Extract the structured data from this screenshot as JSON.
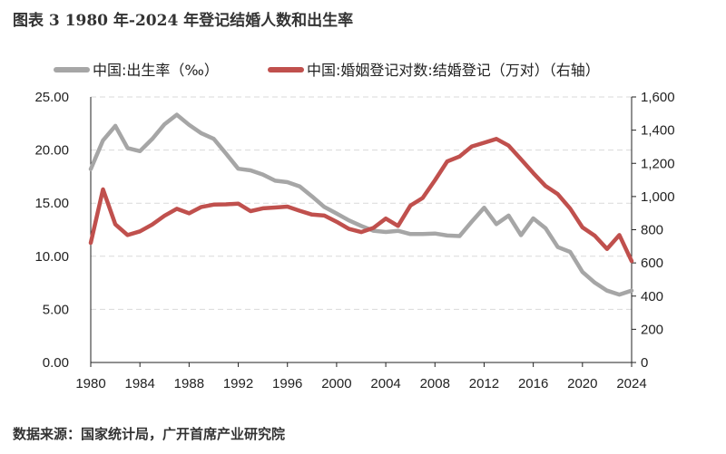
{
  "title": "图表 3 1980 年-2024 年登记结婚人数和出生率",
  "source": "数据来源：国家统计局，广开首席产业研究院",
  "chart_data": {
    "type": "line",
    "title": "图表 3 1980 年-2024 年登记结婚人数和出生率",
    "x": [
      1980,
      1981,
      1982,
      1983,
      1984,
      1985,
      1986,
      1987,
      1988,
      1989,
      1990,
      1991,
      1992,
      1993,
      1994,
      1995,
      1996,
      1997,
      1998,
      1999,
      2000,
      2001,
      2002,
      2003,
      2004,
      2005,
      2006,
      2007,
      2008,
      2009,
      2010,
      2011,
      2012,
      2013,
      2014,
      2015,
      2016,
      2017,
      2018,
      2019,
      2020,
      2021,
      2022,
      2023,
      2024
    ],
    "x_ticks": [
      "1980",
      "1984",
      "1988",
      "1992",
      "1996",
      "2000",
      "2004",
      "2008",
      "2012",
      "2016",
      "2020",
      "2024"
    ],
    "y_left": {
      "lim": [
        0,
        25
      ],
      "ticks": [
        "0.00",
        "5.00",
        "10.00",
        "15.00",
        "20.00",
        "25.00"
      ]
    },
    "y_right": {
      "lim": [
        0,
        1600
      ],
      "ticks": [
        "0",
        "200",
        "400",
        "600",
        "800",
        "1,000",
        "1,200",
        "1,400",
        "1,600"
      ]
    },
    "grid": "horizontal dashed",
    "legend": "top",
    "series": [
      {
        "name": "中国:出生率（‰）",
        "axis": "left",
        "color": "#a6a6a6",
        "values": [
          18.21,
          20.91,
          22.28,
          20.19,
          19.9,
          21.04,
          22.43,
          23.33,
          22.37,
          21.58,
          21.06,
          19.68,
          18.24,
          18.09,
          17.7,
          17.12,
          16.98,
          16.57,
          15.64,
          14.64,
          14.03,
          13.38,
          12.86,
          12.41,
          12.29,
          12.4,
          12.09,
          12.1,
          12.14,
          11.95,
          11.9,
          13.27,
          14.57,
          13.03,
          13.83,
          11.99,
          13.57,
          12.64,
          10.86,
          10.41,
          8.52,
          7.52,
          6.77,
          6.39,
          6.77
        ]
      },
      {
        "name": "中国:婚姻登记对数:结婚登记（万对）（右轴）",
        "axis": "right",
        "color": "#c0504d",
        "values": [
          721,
          1043,
          832,
          768,
          790,
          831,
          884,
          926,
          899,
          937,
          951,
          953,
          957,
          912,
          929,
          934,
          939,
          914,
          891,
          885,
          848,
          805,
          786,
          811,
          867,
          823,
          945,
          991,
          1098,
          1212,
          1241,
          1302,
          1324,
          1347,
          1307,
          1225,
          1142,
          1063,
          1014,
          927,
          814,
          764,
          684,
          768,
          611
        ]
      }
    ]
  }
}
